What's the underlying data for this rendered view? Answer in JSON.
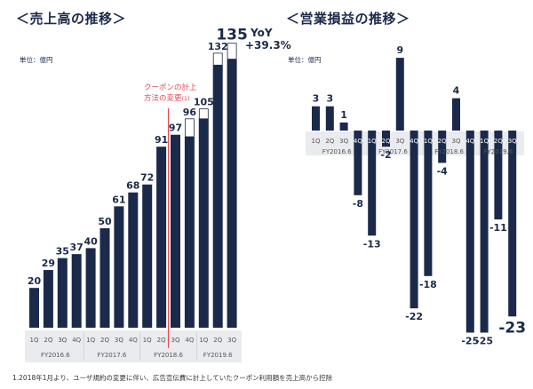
{
  "footnote": "1.2018年1月より、ユーザ規約の変更に伴い、広告宣伝費に計上していたクーポン利用額を売上高から控除",
  "colors": {
    "bar": "#1b2a4a",
    "note": "#e2474f",
    "axis_band": "#e9ebef",
    "tick": "#555555"
  },
  "chart_data": [
    {
      "type": "bar",
      "title": "＜売上高の推移＞",
      "unit": "単位：億円",
      "categories": [
        "1Q",
        "2Q",
        "3Q",
        "4Q",
        "1Q",
        "2Q",
        "3Q",
        "4Q",
        "1Q",
        "2Q",
        "3Q",
        "4Q",
        "1Q",
        "2Q",
        "3Q"
      ],
      "fiscal_years": [
        "FY2016.6",
        "FY2017.6",
        "FY2018.6",
        "FY2019.6"
      ],
      "values": [
        20,
        29,
        35,
        37,
        40,
        50,
        61,
        68,
        72,
        91,
        97,
        96,
        105,
        132,
        135
      ],
      "value_labels": [
        "20",
        "29",
        "35",
        "37",
        "40",
        "50",
        "61",
        "68",
        "72",
        "91",
        "97",
        "96",
        "105",
        "132",
        "135"
      ],
      "pre_coupon_extra": [
        0,
        0,
        0,
        0,
        0,
        0,
        0,
        0,
        0,
        0,
        0,
        9,
        5,
        6,
        8
      ],
      "annotation": {
        "line1": "クーポンの計上",
        "line2": "方法の変更",
        "marker": "(1)"
      },
      "yoy": {
        "label": "YoY",
        "value": "+39.3%"
      }
    },
    {
      "type": "bar",
      "title": "＜営業損益の推移＞",
      "unit": "単位：億円",
      "categories": [
        "1Q",
        "2Q",
        "3Q",
        "4Q",
        "1Q",
        "2Q",
        "3Q",
        "4Q",
        "1Q",
        "2Q",
        "3Q",
        "4Q",
        "1Q",
        "2Q",
        "3Q"
      ],
      "fiscal_years": [
        "FY2016.6",
        "FY2017.6",
        "FY2018.6",
        "FY2019.6"
      ],
      "values": [
        3,
        3,
        1,
        -8,
        -13,
        -2,
        9,
        -22,
        -18,
        -4,
        4,
        -25,
        -25,
        -11,
        -23
      ],
      "value_labels": [
        "3",
        "3",
        "1",
        "-8",
        "-13",
        "-2",
        "9",
        "-22",
        "-18",
        "-4",
        "4",
        "-25",
        "-25",
        "-11",
        "-23"
      ]
    }
  ]
}
